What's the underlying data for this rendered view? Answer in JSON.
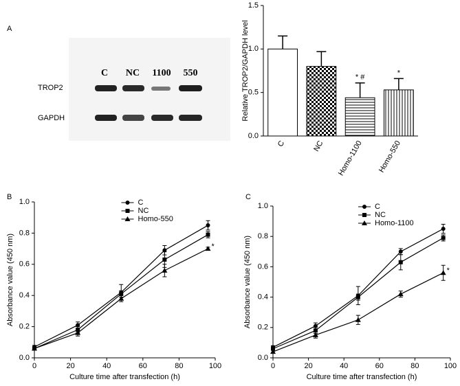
{
  "blot": {
    "label": "A",
    "lanes": [
      "C",
      "NC",
      "1100",
      "550"
    ],
    "rows": [
      "TROP2",
      "GAPDH"
    ]
  },
  "chart_data": [
    {
      "type": "bar",
      "ylabel": "Relative TROP2/GAPDH level",
      "categories": [
        "C",
        "NC",
        "Homo-1100",
        "Homo-550"
      ],
      "values": [
        1.0,
        0.8,
        0.44,
        0.53
      ],
      "errors": [
        0.15,
        0.17,
        0.17,
        0.13
      ],
      "significance": [
        null,
        null,
        "* #",
        "*"
      ],
      "patterns": [
        "solid",
        "checker",
        "hlines",
        "vlines"
      ],
      "color": "#000000",
      "ylim": [
        0,
        1.5
      ],
      "yticks": [
        {
          "value": 0,
          "label": "0.0"
        },
        {
          "value": 0.5,
          "label": "0.5"
        },
        {
          "value": 1.0,
          "label": "1.0"
        },
        {
          "value": 1.5,
          "label": "1.5"
        }
      ]
    },
    {
      "type": "line",
      "panel": "B",
      "xlabel": "Culture time after transfection (h)",
      "ylabel": "Absorbance value (450 nm)",
      "x": [
        0,
        24,
        48,
        72,
        96
      ],
      "series": [
        {
          "name": "C",
          "color": "#000000",
          "marker": "circle",
          "values": [
            0.07,
            0.21,
            0.42,
            0.69,
            0.85
          ],
          "errors": [
            0.01,
            0.02,
            0.05,
            0.03,
            0.03
          ]
        },
        {
          "name": "NC",
          "color": "#000000",
          "marker": "square",
          "values": [
            0.06,
            0.18,
            0.41,
            0.63,
            0.79
          ],
          "errors": [
            0.01,
            0.02,
            0.02,
            0.05,
            0.02
          ]
        },
        {
          "name": "Homo-550",
          "color": "#000000",
          "marker": "triangle",
          "values": [
            0.06,
            0.16,
            0.38,
            0.56,
            0.7
          ],
          "errors": [
            0.01,
            0.02,
            0.02,
            0.04,
            0.01
          ]
        }
      ],
      "annotation": "*",
      "legend_loc": "upper center",
      "xlim": [
        0,
        100
      ],
      "xticks": [
        0,
        20,
        40,
        60,
        80,
        100
      ],
      "ylim": [
        0,
        1.0
      ],
      "yticks": [
        {
          "value": 0,
          "label": "0.0"
        },
        {
          "value": 0.2,
          "label": "0.2"
        },
        {
          "value": 0.4,
          "label": "0.4"
        },
        {
          "value": 0.6,
          "label": "0.6"
        },
        {
          "value": 0.8,
          "label": "0.8"
        },
        {
          "value": 1.0,
          "label": "1.0"
        }
      ]
    },
    {
      "type": "line",
      "panel": "C",
      "xlabel": "Culture time after transfection (h)",
      "ylabel": "Absorbance value (450 nm)",
      "x": [
        0,
        24,
        48,
        72,
        96
      ],
      "series": [
        {
          "name": "C",
          "color": "#000000",
          "marker": "circle",
          "values": [
            0.07,
            0.21,
            0.41,
            0.7,
            0.85
          ],
          "errors": [
            0.01,
            0.02,
            0.06,
            0.02,
            0.03
          ]
        },
        {
          "name": "NC",
          "color": "#000000",
          "marker": "square",
          "values": [
            0.06,
            0.18,
            0.4,
            0.63,
            0.79
          ],
          "errors": [
            0.01,
            0.02,
            0.02,
            0.05,
            0.02
          ]
        },
        {
          "name": "Homo-1100",
          "color": "#000000",
          "marker": "triangle",
          "values": [
            0.04,
            0.15,
            0.25,
            0.42,
            0.56
          ],
          "errors": [
            0.01,
            0.02,
            0.03,
            0.02,
            0.05
          ]
        }
      ],
      "annotation": "*",
      "legend_loc": "upper center",
      "xlim": [
        0,
        100
      ],
      "xticks": [
        0,
        20,
        40,
        60,
        80,
        100
      ],
      "ylim": [
        0,
        1.0
      ],
      "yticks": [
        {
          "value": 0,
          "label": "0.0"
        },
        {
          "value": 0.2,
          "label": "0.2"
        },
        {
          "value": 0.4,
          "label": "0.4"
        },
        {
          "value": 0.6,
          "label": "0.6"
        },
        {
          "value": 0.8,
          "label": "0.8"
        },
        {
          "value": 1.0,
          "label": "1.0"
        }
      ]
    }
  ]
}
